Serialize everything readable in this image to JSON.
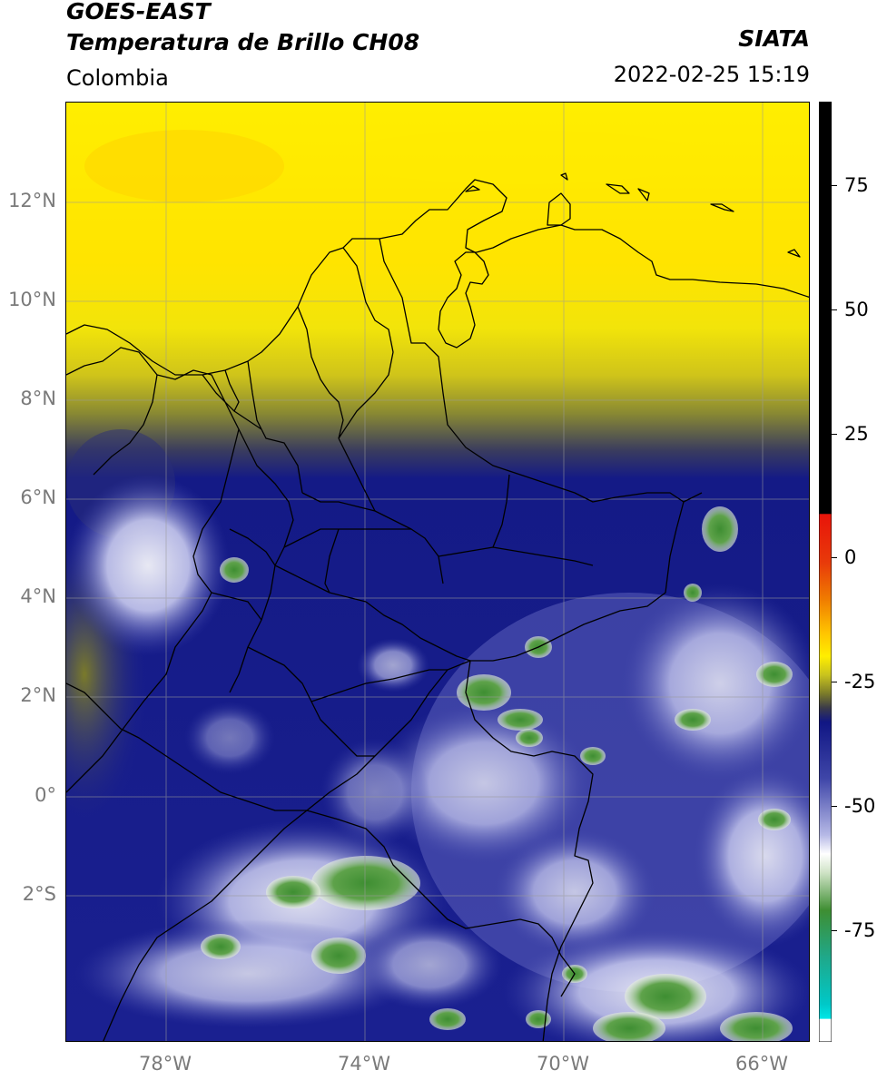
{
  "header": {
    "title_line1": "GOES-EAST",
    "title_line2": "Temperatura de Brillo CH08",
    "region": "Colombia",
    "brand": "SIATA",
    "datetime": "2022-02-25 15:19"
  },
  "map": {
    "lat_ticks": [
      "12°N",
      "10°N",
      "8°N",
      "6°N",
      "4°N",
      "2°N",
      "0°",
      "2°S"
    ],
    "lon_ticks": [
      "78°W",
      "74°W",
      "70°W",
      "66°W"
    ]
  },
  "colorbar": {
    "ticks": [
      "75",
      "50",
      "25",
      "0",
      "-25",
      "-50",
      "-75"
    ],
    "colors": {
      "black": "#000000",
      "red": "#e8140a",
      "orange": "#f07d00",
      "yellow": "#ffee00",
      "olive": "#7a7a2a",
      "navy": "#101684",
      "lavender": "#9a9ed6",
      "white": "#ffffff",
      "green": "#3e8e32",
      "teal": "#1fa88a",
      "cyan": "#00e0e0"
    }
  }
}
